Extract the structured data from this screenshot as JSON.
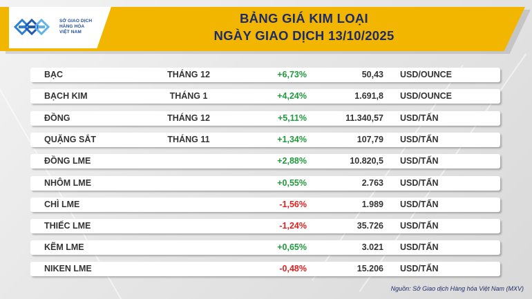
{
  "header": {
    "title_line1": "BẢNG GIÁ KIM LOẠI",
    "title_line2": "NGÀY GIAO DỊCH 13/10/2025",
    "logo": {
      "line1": "SỞ GIAO DỊCH",
      "line2": "HÀNG HÓA",
      "line3": "VIỆT NAM"
    }
  },
  "rows": [
    {
      "name": "BẠC",
      "month": "THÁNG 12",
      "change": "+6,73%",
      "direction": "up",
      "price": "50,43",
      "unit": "USD/OUNCE"
    },
    {
      "name": "BẠCH KIM",
      "month": "THÁNG 1",
      "change": "+4,24%",
      "direction": "up",
      "price": "1.691,8",
      "unit": "USD/OUNCE"
    },
    {
      "name": "ĐỒNG",
      "month": "THÁNG 12",
      "change": "+5,11%",
      "direction": "up",
      "price": "11.340,57",
      "unit": "USD/TẤN"
    },
    {
      "name": "QUẶNG SẮT",
      "month": "THÁNG 11",
      "change": "+1,34%",
      "direction": "up",
      "price": "107,79",
      "unit": "USD/TẤN"
    },
    {
      "name": "ĐỒNG LME",
      "month": "",
      "change": "+2,88%",
      "direction": "up",
      "price": "10.820,5",
      "unit": "USD/TẤN"
    },
    {
      "name": "NHÔM LME",
      "month": "",
      "change": "+0,55%",
      "direction": "up",
      "price": "2.763",
      "unit": "USD/TẤN"
    },
    {
      "name": "CHÌ LME",
      "month": "",
      "change": "-1,56%",
      "direction": "down",
      "price": "1.989",
      "unit": "USD/TẤN"
    },
    {
      "name": "THIẾC LME",
      "month": "",
      "change": "-1,24%",
      "direction": "down",
      "price": "35.726",
      "unit": "USD/TẤN"
    },
    {
      "name": "KẼM LME",
      "month": "",
      "change": "+0,65%",
      "direction": "up",
      "price": "3.021",
      "unit": "USD/TẤN"
    },
    {
      "name": "NIKEN LME",
      "month": "",
      "change": "-0,48%",
      "direction": "down",
      "price": "15.206",
      "unit": "USD/TẤN"
    }
  ],
  "source": "Nguồn: Sở Giao dịch Hàng hóa Việt Nam (MXV)",
  "colors": {
    "header_band": "#f2b600",
    "title_text": "#1d2b6b",
    "up": "#1f9a3c",
    "down": "#e02020",
    "logo_blue": "#1f4e9c"
  }
}
